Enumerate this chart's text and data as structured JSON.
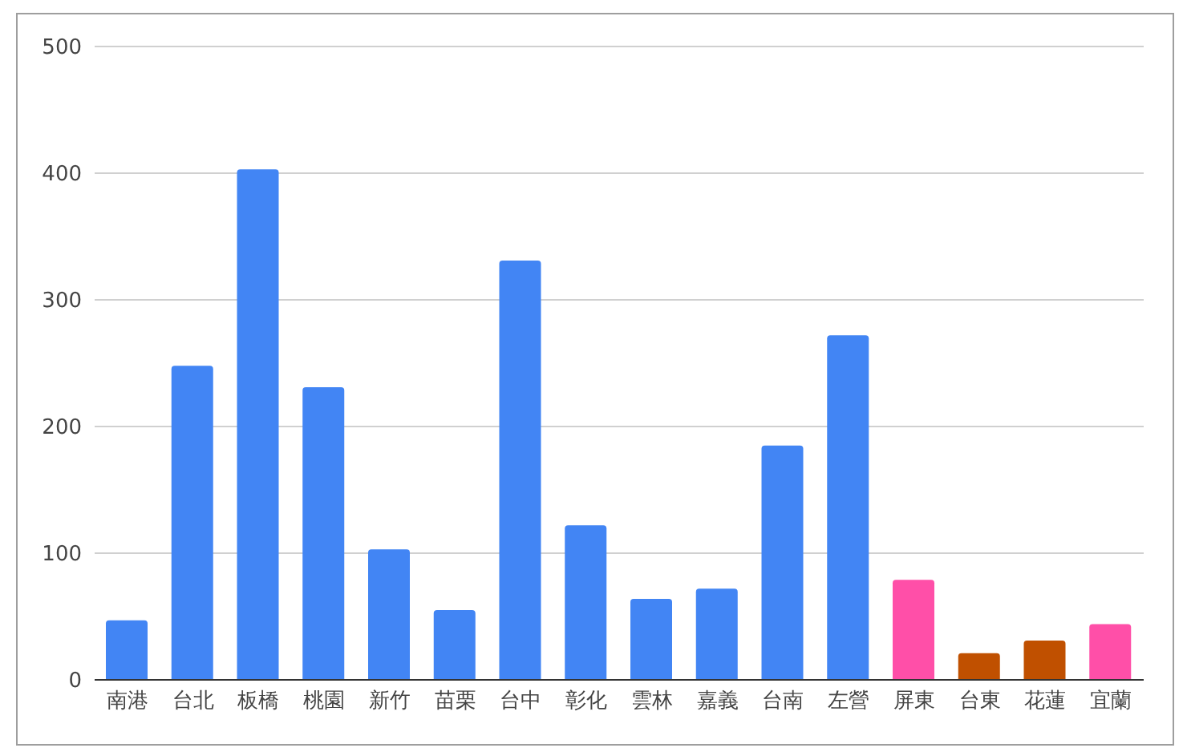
{
  "chart_data": {
    "type": "bar",
    "categories": [
      "南港",
      "台北",
      "板橋",
      "桃園",
      "新竹",
      "苗栗",
      "台中",
      "彰化",
      "雲林",
      "嘉義",
      "台南",
      "左營",
      "屏東",
      "台東",
      "花蓮",
      "宜蘭"
    ],
    "values": [
      47,
      248,
      403,
      231,
      103,
      55,
      331,
      122,
      64,
      72,
      185,
      272,
      79,
      21,
      31,
      44
    ],
    "colors": [
      "#4285f4",
      "#4285f4",
      "#4285f4",
      "#4285f4",
      "#4285f4",
      "#4285f4",
      "#4285f4",
      "#4285f4",
      "#4285f4",
      "#4285f4",
      "#4285f4",
      "#4285f4",
      "#ff4fa8",
      "#c05000",
      "#c05000",
      "#ff4fa8"
    ],
    "ylim": [
      0,
      500
    ],
    "yticks": [
      0,
      100,
      200,
      300,
      400,
      500
    ],
    "grid": "y",
    "legend": false
  }
}
